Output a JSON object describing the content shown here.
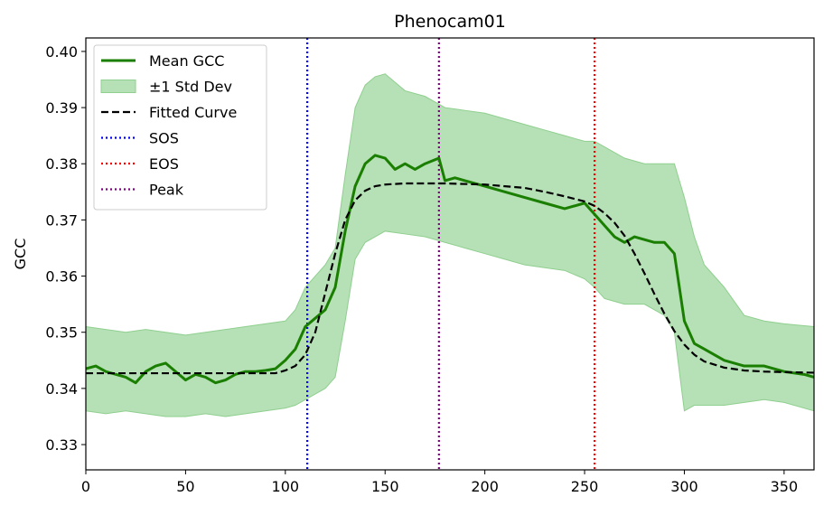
{
  "chart_data": {
    "type": "line",
    "title": "Phenocam01",
    "xlabel": "",
    "ylabel": "GCC",
    "xlim": [
      0,
      365
    ],
    "ylim": [
      0.3255,
      0.4024
    ],
    "xticks": [
      0,
      50,
      100,
      150,
      200,
      250,
      300,
      350
    ],
    "yticks": [
      0.33,
      0.34,
      0.35,
      0.36,
      0.37,
      0.38,
      0.39,
      0.4
    ],
    "ytick_labels": [
      "0.33",
      "0.34",
      "0.35",
      "0.36",
      "0.37",
      "0.38",
      "0.39",
      "0.40"
    ],
    "grid": false,
    "legend_placement": "top-left",
    "colors": {
      "mean": "#1a7f00",
      "band": "#8fcf8f",
      "fit": "#000000",
      "sos": "#0000ff",
      "eos": "#ff0000",
      "peak": "#800080"
    },
    "mean_gcc": {
      "name": "Mean GCC",
      "x": [
        0,
        5,
        10,
        15,
        20,
        25,
        30,
        35,
        40,
        45,
        50,
        55,
        60,
        65,
        70,
        75,
        80,
        85,
        90,
        95,
        100,
        105,
        110,
        115,
        120,
        125,
        130,
        135,
        140,
        145,
        150,
        155,
        160,
        165,
        170,
        177,
        180,
        185,
        190,
        200,
        210,
        220,
        230,
        240,
        250,
        255,
        260,
        265,
        270,
        275,
        280,
        285,
        290,
        295,
        300,
        305,
        310,
        320,
        330,
        340,
        350,
        360,
        365
      ],
      "y": [
        0.3435,
        0.344,
        0.343,
        0.3425,
        0.342,
        0.341,
        0.343,
        0.344,
        0.3445,
        0.343,
        0.3415,
        0.3425,
        0.342,
        0.341,
        0.3415,
        0.3425,
        0.343,
        0.343,
        0.3432,
        0.3435,
        0.345,
        0.347,
        0.351,
        0.3525,
        0.354,
        0.358,
        0.368,
        0.376,
        0.38,
        0.3815,
        0.381,
        0.379,
        0.38,
        0.379,
        0.38,
        0.381,
        0.377,
        0.3775,
        0.377,
        0.376,
        0.375,
        0.374,
        0.373,
        0.372,
        0.373,
        0.371,
        0.369,
        0.367,
        0.366,
        0.367,
        0.3665,
        0.366,
        0.366,
        0.364,
        0.352,
        0.348,
        0.347,
        0.345,
        0.344,
        0.344,
        0.343,
        0.3425,
        0.342
      ]
    },
    "std_band": {
      "name": "±1 Std Dev",
      "x": [
        0,
        10,
        20,
        30,
        40,
        50,
        60,
        70,
        80,
        90,
        100,
        105,
        110,
        115,
        120,
        125,
        130,
        135,
        140,
        145,
        150,
        160,
        170,
        180,
        190,
        200,
        210,
        220,
        230,
        240,
        250,
        255,
        260,
        270,
        280,
        290,
        295,
        300,
        305,
        310,
        320,
        330,
        340,
        350,
        365
      ],
      "upper": [
        0.351,
        0.3505,
        0.35,
        0.3505,
        0.35,
        0.3495,
        0.35,
        0.3505,
        0.351,
        0.3515,
        0.352,
        0.354,
        0.358,
        0.36,
        0.362,
        0.365,
        0.378,
        0.39,
        0.394,
        0.3955,
        0.396,
        0.393,
        0.392,
        0.39,
        0.3895,
        0.389,
        0.388,
        0.387,
        0.386,
        0.385,
        0.384,
        0.384,
        0.383,
        0.381,
        0.38,
        0.38,
        0.38,
        0.374,
        0.367,
        0.362,
        0.358,
        0.353,
        0.352,
        0.3515,
        0.351
      ],
      "lower": [
        0.336,
        0.3355,
        0.336,
        0.3355,
        0.335,
        0.335,
        0.3355,
        0.335,
        0.3355,
        0.336,
        0.3365,
        0.337,
        0.338,
        0.339,
        0.34,
        0.342,
        0.352,
        0.363,
        0.366,
        0.367,
        0.368,
        0.3675,
        0.367,
        0.366,
        0.365,
        0.364,
        0.363,
        0.362,
        0.3615,
        0.361,
        0.3595,
        0.358,
        0.356,
        0.355,
        0.355,
        0.353,
        0.35,
        0.336,
        0.337,
        0.337,
        0.337,
        0.3375,
        0.338,
        0.3375,
        0.336
      ]
    },
    "fitted_curve": {
      "name": "Fitted Curve",
      "x": [
        0,
        50,
        95,
        100,
        105,
        110,
        115,
        120,
        125,
        130,
        135,
        140,
        145,
        150,
        160,
        180,
        200,
        220,
        230,
        240,
        250,
        255,
        260,
        265,
        270,
        275,
        280,
        285,
        290,
        295,
        300,
        305,
        310,
        320,
        330,
        340,
        350,
        365
      ],
      "y": [
        0.3427,
        0.3427,
        0.3427,
        0.3432,
        0.344,
        0.346,
        0.35,
        0.357,
        0.364,
        0.37,
        0.3735,
        0.3752,
        0.376,
        0.3763,
        0.3765,
        0.3765,
        0.3763,
        0.3757,
        0.375,
        0.3742,
        0.3733,
        0.3725,
        0.3712,
        0.3695,
        0.3672,
        0.364,
        0.3605,
        0.3568,
        0.3533,
        0.3502,
        0.3478,
        0.346,
        0.3448,
        0.3437,
        0.3432,
        0.343,
        0.3429,
        0.3428
      ]
    },
    "vlines": [
      {
        "name": "SOS",
        "x": 111,
        "color": "#0000ff"
      },
      {
        "name": "EOS",
        "x": 255,
        "color": "#ff0000"
      },
      {
        "name": "Peak",
        "x": 177,
        "color": "#800080"
      }
    ],
    "legend": [
      "Mean GCC",
      "±1 Std Dev",
      "Fitted Curve",
      "SOS",
      "EOS",
      "Peak"
    ]
  }
}
